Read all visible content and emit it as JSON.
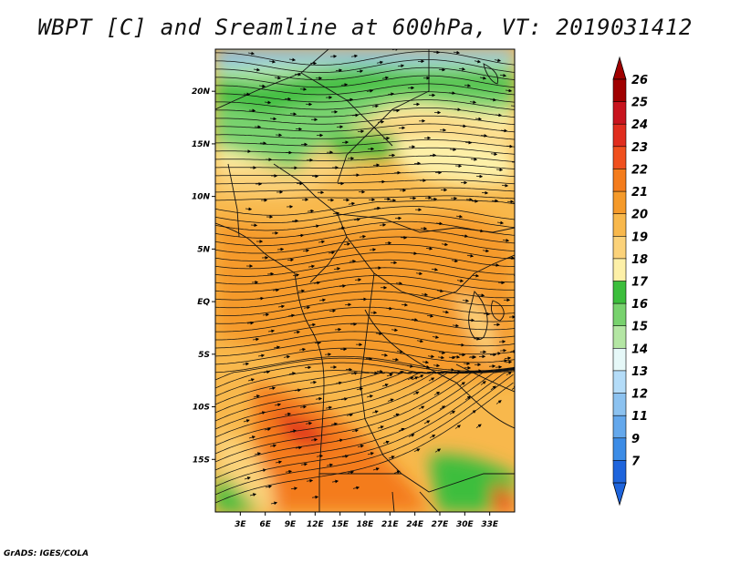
{
  "title": "WBPT [C] and Sreamline at 600hPa, VT: 2019031412",
  "credit": "GrADS: IGES/COLA",
  "map": {
    "lon_range": [
      0,
      36
    ],
    "lat_range": [
      -20,
      24
    ],
    "lat_ticks": [
      {
        "label": "20N",
        "value": 20
      },
      {
        "label": "15N",
        "value": 15
      },
      {
        "label": "10N",
        "value": 10
      },
      {
        "label": "5N",
        "value": 5
      },
      {
        "label": "EQ",
        "value": 0
      },
      {
        "label": "5S",
        "value": -5
      },
      {
        "label": "10S",
        "value": -10
      },
      {
        "label": "15S",
        "value": -15
      }
    ],
    "lon_ticks": [
      {
        "label": "3E",
        "value": 3
      },
      {
        "label": "6E",
        "value": 6
      },
      {
        "label": "9E",
        "value": 9
      },
      {
        "label": "12E",
        "value": 12
      },
      {
        "label": "15E",
        "value": 15
      },
      {
        "label": "18E",
        "value": 18
      },
      {
        "label": "21E",
        "value": 21
      },
      {
        "label": "24E",
        "value": 24
      },
      {
        "label": "27E",
        "value": 27
      },
      {
        "label": "30E",
        "value": 30
      },
      {
        "label": "33E",
        "value": 33
      }
    ]
  },
  "colorbar": {
    "levels": [
      {
        "label": "26",
        "color": "#a00000"
      },
      {
        "label": "25",
        "color": "#c8141e"
      },
      {
        "label": "24",
        "color": "#e02d1e"
      },
      {
        "label": "23",
        "color": "#f0501e"
      },
      {
        "label": "22",
        "color": "#f47c1c"
      },
      {
        "label": "21",
        "color": "#f59a2a"
      },
      {
        "label": "20",
        "color": "#f8b84c"
      },
      {
        "label": "19",
        "color": "#fbd27a"
      },
      {
        "label": "18",
        "color": "#fdf0a8"
      },
      {
        "label": "17",
        "color": "#3cbe3c"
      },
      {
        "label": "16",
        "color": "#78d26e"
      },
      {
        "label": "15",
        "color": "#b4e6a4"
      },
      {
        "label": "14",
        "color": "#e6f8f8"
      },
      {
        "label": "13",
        "color": "#b4dcf8"
      },
      {
        "label": "12",
        "color": "#8cc2f0"
      },
      {
        "label": "11",
        "color": "#64a8ec"
      },
      {
        "label": "9",
        "color": "#3c8ce6"
      },
      {
        "label": "7",
        "color": "#1e64dc"
      }
    ],
    "bottom_triangle_color": "#1e64dc",
    "top_triangle_color": "#a00000"
  }
}
